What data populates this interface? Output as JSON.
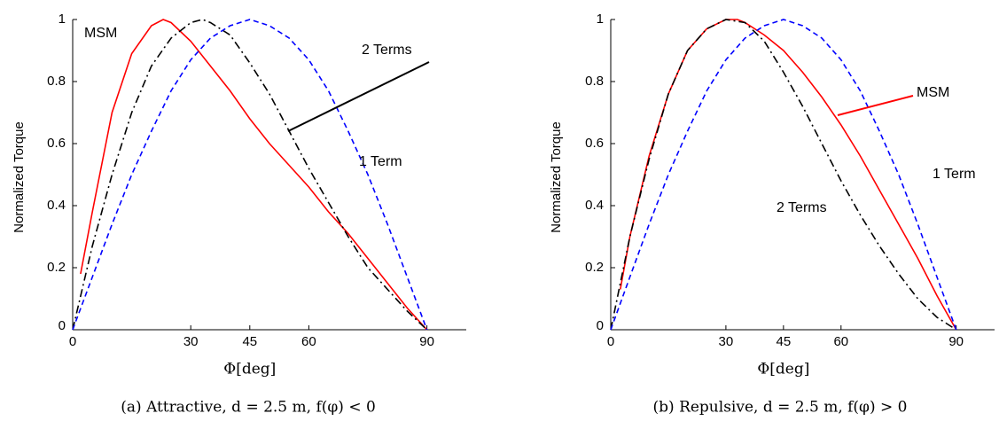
{
  "chart_data": [
    {
      "type": "line",
      "caption": "(a) Attractive, d = 2.5 m, f(φ) < 0",
      "xlabel": "Φ[deg]",
      "ylabel": "Normalized Torque",
      "xlim": [
        0,
        100
      ],
      "ylim": [
        0,
        1
      ],
      "xticks": [
        0,
        30,
        45,
        60,
        90
      ],
      "yticks": [
        0,
        0.2,
        0.4,
        0.6,
        0.8,
        1
      ],
      "annotations": [
        "MSM",
        "2 Terms",
        "1 Term"
      ],
      "series": [
        {
          "name": "MSM",
          "color": "#ff0000",
          "dash": "solid",
          "x": [
            2,
            5,
            10,
            15,
            20,
            23,
            25,
            30,
            35,
            40,
            45,
            50,
            55,
            60,
            65,
            70,
            75,
            80,
            85,
            90
          ],
          "values": [
            0.18,
            0.38,
            0.7,
            0.89,
            0.98,
            1,
            0.99,
            0.93,
            0.85,
            0.77,
            0.68,
            0.6,
            0.53,
            0.46,
            0.38,
            0.31,
            0.23,
            0.15,
            0.07,
            0
          ]
        },
        {
          "name": "2 Terms",
          "color": "#000000",
          "dash": "dashdot",
          "x": [
            0,
            5,
            10,
            15,
            20,
            25,
            30,
            33,
            35,
            40,
            45,
            50,
            55,
            60,
            65,
            70,
            75,
            80,
            85,
            90
          ],
          "values": [
            0,
            0.27,
            0.5,
            0.7,
            0.85,
            0.94,
            0.99,
            1,
            0.99,
            0.95,
            0.86,
            0.76,
            0.64,
            0.52,
            0.41,
            0.3,
            0.2,
            0.13,
            0.06,
            0
          ]
        },
        {
          "name": "1 Term",
          "color": "#0000ff",
          "dash": "dashed",
          "x": [
            0,
            5,
            10,
            15,
            20,
            25,
            30,
            35,
            40,
            45,
            50,
            55,
            60,
            65,
            70,
            75,
            80,
            85,
            90
          ],
          "values": [
            0,
            0.17,
            0.34,
            0.5,
            0.64,
            0.77,
            0.87,
            0.94,
            0.98,
            1,
            0.98,
            0.94,
            0.87,
            0.77,
            0.64,
            0.5,
            0.34,
            0.17,
            0
          ]
        }
      ]
    },
    {
      "type": "line",
      "caption": "(b) Repulsive, d = 2.5 m, f(φ) > 0",
      "xlabel": "Φ[deg]",
      "ylabel": "Normalized Torque",
      "xlim": [
        0,
        100
      ],
      "ylim": [
        0,
        1
      ],
      "xticks": [
        0,
        30,
        45,
        60,
        90
      ],
      "yticks": [
        0,
        0.2,
        0.4,
        0.6,
        0.8,
        1
      ],
      "annotations": [
        "MSM",
        "1 Term",
        "2 Terms"
      ],
      "series": [
        {
          "name": "MSM",
          "color": "#ff0000",
          "dash": "solid",
          "x": [
            2.5,
            5,
            10,
            15,
            20,
            25,
            30,
            33,
            35,
            40,
            45,
            50,
            55,
            60,
            65,
            70,
            75,
            80,
            85,
            90
          ],
          "values": [
            0.13,
            0.3,
            0.56,
            0.76,
            0.9,
            0.97,
            1,
            1,
            0.99,
            0.95,
            0.9,
            0.83,
            0.75,
            0.66,
            0.56,
            0.45,
            0.34,
            0.23,
            0.11,
            0
          ]
        },
        {
          "name": "2 Terms",
          "color": "#000000",
          "dash": "dashdot",
          "x": [
            0,
            5,
            10,
            15,
            20,
            25,
            30,
            35,
            40,
            45,
            50,
            55,
            60,
            65,
            70,
            75,
            80,
            85,
            90
          ],
          "values": [
            0,
            0.3,
            0.55,
            0.76,
            0.9,
            0.97,
            1,
            0.99,
            0.93,
            0.83,
            0.72,
            0.6,
            0.48,
            0.37,
            0.27,
            0.18,
            0.1,
            0.04,
            0
          ]
        },
        {
          "name": "1 Term",
          "color": "#0000ff",
          "dash": "dashed",
          "x": [
            0,
            5,
            10,
            15,
            20,
            25,
            30,
            35,
            40,
            45,
            50,
            55,
            60,
            65,
            70,
            75,
            80,
            85,
            90
          ],
          "values": [
            0,
            0.17,
            0.34,
            0.5,
            0.64,
            0.77,
            0.87,
            0.94,
            0.98,
            1,
            0.98,
            0.94,
            0.87,
            0.77,
            0.64,
            0.5,
            0.34,
            0.17,
            0
          ]
        }
      ]
    }
  ]
}
